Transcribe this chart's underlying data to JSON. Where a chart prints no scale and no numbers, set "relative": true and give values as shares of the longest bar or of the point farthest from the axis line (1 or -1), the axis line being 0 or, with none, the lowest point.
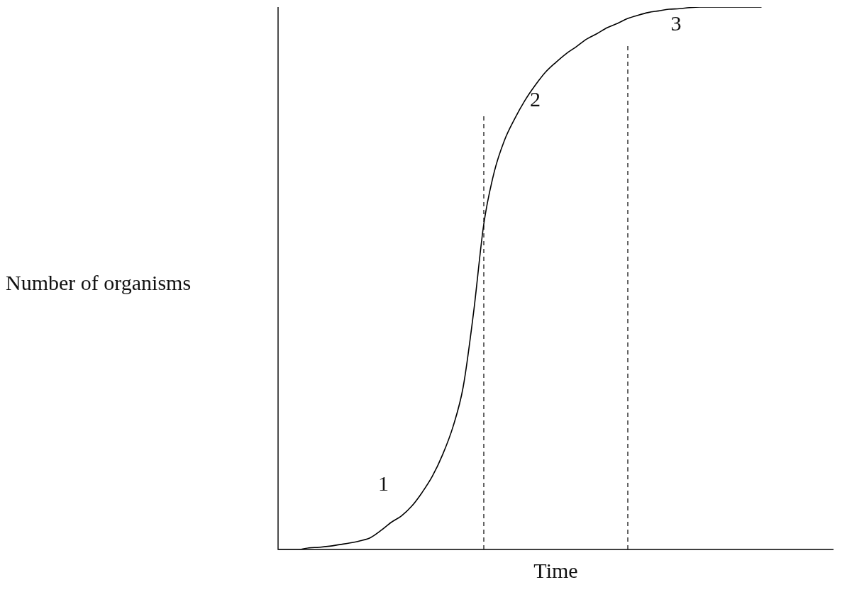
{
  "chart_data": {
    "type": "line",
    "relative": true,
    "xlabel": "Time",
    "ylabel": "Number of organisms",
    "categories": [
      null,
      null,
      null,
      null,
      null,
      null,
      null,
      null,
      null,
      null,
      null,
      null,
      null,
      null,
      null,
      null,
      null,
      null,
      null,
      null,
      null,
      null,
      null,
      null,
      null,
      null,
      null,
      null,
      null,
      null,
      null,
      null,
      null,
      null,
      null,
      null,
      null,
      null,
      null,
      null,
      null,
      null,
      null,
      null,
      null,
      null,
      null,
      null,
      null,
      null,
      null,
      null,
      null,
      null,
      null
    ],
    "series": [
      {
        "color": "#000000",
        "values": [
          0,
          0,
          0,
          0.003,
          0.004,
          0.006,
          0.009,
          0.012,
          0.016,
          0.022,
          0.035,
          0.05,
          0.062,
          0.08,
          0.105,
          0.135,
          0.175,
          0.226,
          0.3,
          0.436,
          0.6,
          0.695,
          0.754,
          0.794,
          0.828,
          0.856,
          0.88,
          0.898,
          0.914,
          0.927,
          0.941,
          0.951,
          0.962,
          0.97,
          0.979,
          0.985,
          0.99,
          0.993,
          0.996,
          0.997,
          0.999,
          1,
          1,
          1,
          1,
          1,
          1,
          1,
          null,
          null,
          null,
          null,
          null,
          null,
          null
        ]
      }
    ],
    "annotations": [
      "1",
      "2",
      "3"
    ],
    "marker": "none",
    "line_style": "solid",
    "legend": false
  }
}
